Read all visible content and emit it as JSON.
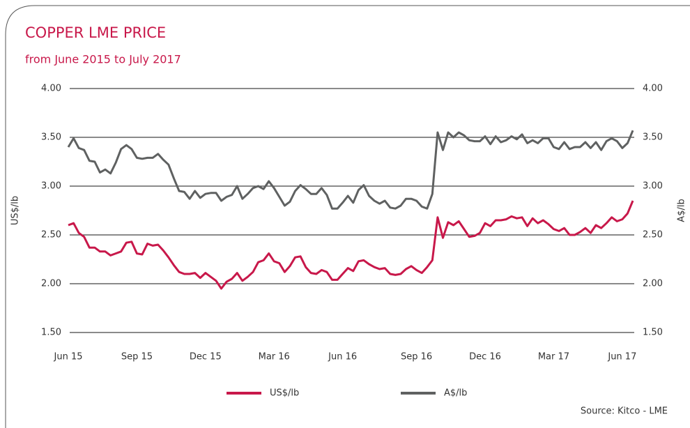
{
  "chart_data": {
    "type": "line",
    "title": "COPPER LME PRICE",
    "subtitle": "from June 2015 to July 2017",
    "ylabel": "US$/lb",
    "y2label": "A$/lb",
    "source": "Source: Kitco - LME",
    "categories": [
      "Jun 15",
      null,
      null,
      null,
      null,
      null,
      null,
      null,
      null,
      null,
      null,
      null,
      null,
      "Sep 15",
      null,
      null,
      null,
      null,
      null,
      null,
      null,
      null,
      null,
      null,
      null,
      null,
      "Dec 15",
      null,
      null,
      null,
      null,
      null,
      null,
      null,
      null,
      null,
      null,
      null,
      null,
      "Mar 16",
      null,
      null,
      null,
      null,
      null,
      null,
      null,
      null,
      null,
      null,
      null,
      null,
      "Jun 16",
      null,
      null,
      null,
      null,
      null,
      null,
      null,
      null,
      null,
      null,
      null,
      null,
      null,
      "Sep 16",
      null,
      null,
      null,
      null,
      null,
      null,
      null,
      null,
      null,
      null,
      null,
      null,
      "Dec 16",
      null,
      null,
      null,
      null,
      null,
      null,
      null,
      null,
      null,
      null,
      null,
      null,
      "Mar 17",
      null,
      null,
      null,
      null,
      null,
      null,
      null,
      null,
      null,
      null,
      null,
      null,
      "Jun 17",
      null,
      null
    ],
    "series": [
      {
        "name": "US$/lb",
        "color": "#c8184a",
        "axis": "y",
        "values": [
          2.6,
          2.62,
          2.52,
          2.48,
          2.37,
          2.37,
          2.33,
          2.33,
          2.29,
          2.31,
          2.33,
          2.42,
          2.43,
          2.31,
          2.3,
          2.41,
          2.39,
          2.4,
          2.34,
          2.27,
          2.19,
          2.12,
          2.1,
          2.1,
          2.11,
          2.06,
          2.11,
          2.07,
          2.03,
          1.95,
          2.02,
          2.05,
          2.11,
          2.03,
          2.07,
          2.12,
          2.22,
          2.24,
          2.31,
          2.23,
          2.21,
          2.12,
          2.18,
          2.27,
          2.28,
          2.17,
          2.11,
          2.1,
          2.14,
          2.12,
          2.04,
          2.04,
          2.1,
          2.16,
          2.13,
          2.23,
          2.24,
          2.2,
          2.17,
          2.15,
          2.16,
          2.1,
          2.09,
          2.1,
          2.15,
          2.18,
          2.14,
          2.11,
          2.17,
          2.24,
          2.68,
          2.47,
          2.63,
          2.6,
          2.64,
          2.56,
          2.48,
          2.49,
          2.52,
          2.62,
          2.59,
          2.65,
          2.65,
          2.66,
          2.69,
          2.67,
          2.68,
          2.59,
          2.67,
          2.62,
          2.65,
          2.61,
          2.56,
          2.54,
          2.57,
          2.5,
          2.5,
          2.53,
          2.57,
          2.52,
          2.6,
          2.57,
          2.62,
          2.68,
          2.64,
          2.66,
          2.72,
          2.85
        ]
      },
      {
        "name": "A$/lb",
        "color": "#5f6161",
        "axis": "y2",
        "values": [
          3.4,
          3.49,
          3.39,
          3.37,
          3.26,
          3.25,
          3.14,
          3.17,
          3.13,
          3.24,
          3.38,
          3.42,
          3.38,
          3.29,
          3.28,
          3.29,
          3.29,
          3.33,
          3.27,
          3.22,
          3.08,
          2.95,
          2.94,
          2.87,
          2.95,
          2.88,
          2.92,
          2.93,
          2.93,
          2.85,
          2.89,
          2.91,
          3.0,
          2.87,
          2.92,
          2.98,
          3.0,
          2.97,
          3.05,
          2.98,
          2.89,
          2.8,
          2.84,
          2.95,
          3.01,
          2.97,
          2.92,
          2.92,
          2.98,
          2.91,
          2.77,
          2.77,
          2.83,
          2.9,
          2.83,
          2.96,
          3.01,
          2.9,
          2.85,
          2.82,
          2.85,
          2.78,
          2.77,
          2.8,
          2.87,
          2.87,
          2.85,
          2.79,
          2.77,
          2.92,
          3.55,
          3.37,
          3.55,
          3.5,
          3.55,
          3.52,
          3.47,
          3.46,
          3.46,
          3.51,
          3.43,
          3.51,
          3.45,
          3.47,
          3.51,
          3.48,
          3.53,
          3.44,
          3.47,
          3.44,
          3.49,
          3.49,
          3.4,
          3.38,
          3.45,
          3.38,
          3.4,
          3.4,
          3.45,
          3.39,
          3.45,
          3.37,
          3.46,
          3.49,
          3.46,
          3.39,
          3.44,
          3.57
        ]
      }
    ],
    "ylim": [
      1.5,
      4
    ],
    "yticks": [
      {
        "value": 1.5,
        "label": "1.50"
      },
      {
        "value": 2,
        "label": "2.00"
      },
      {
        "value": 2.5,
        "label": "2.50"
      },
      {
        "value": 3,
        "label": "3.00"
      },
      {
        "value": 3.5,
        "label": "3.50"
      },
      {
        "value": 4,
        "label": "4.00"
      }
    ],
    "y2lim": [
      1.5,
      4
    ],
    "y2ticks": [
      {
        "value": 1.5,
        "label": "1.50"
      },
      {
        "value": 2,
        "label": "2.00"
      },
      {
        "value": 2.5,
        "label": "2.50"
      },
      {
        "value": 3,
        "label": "3.00"
      },
      {
        "value": 3.5,
        "label": "3.50"
      },
      {
        "value": 4,
        "label": "4.00"
      }
    ],
    "grid": true,
    "legend": "bottom"
  }
}
